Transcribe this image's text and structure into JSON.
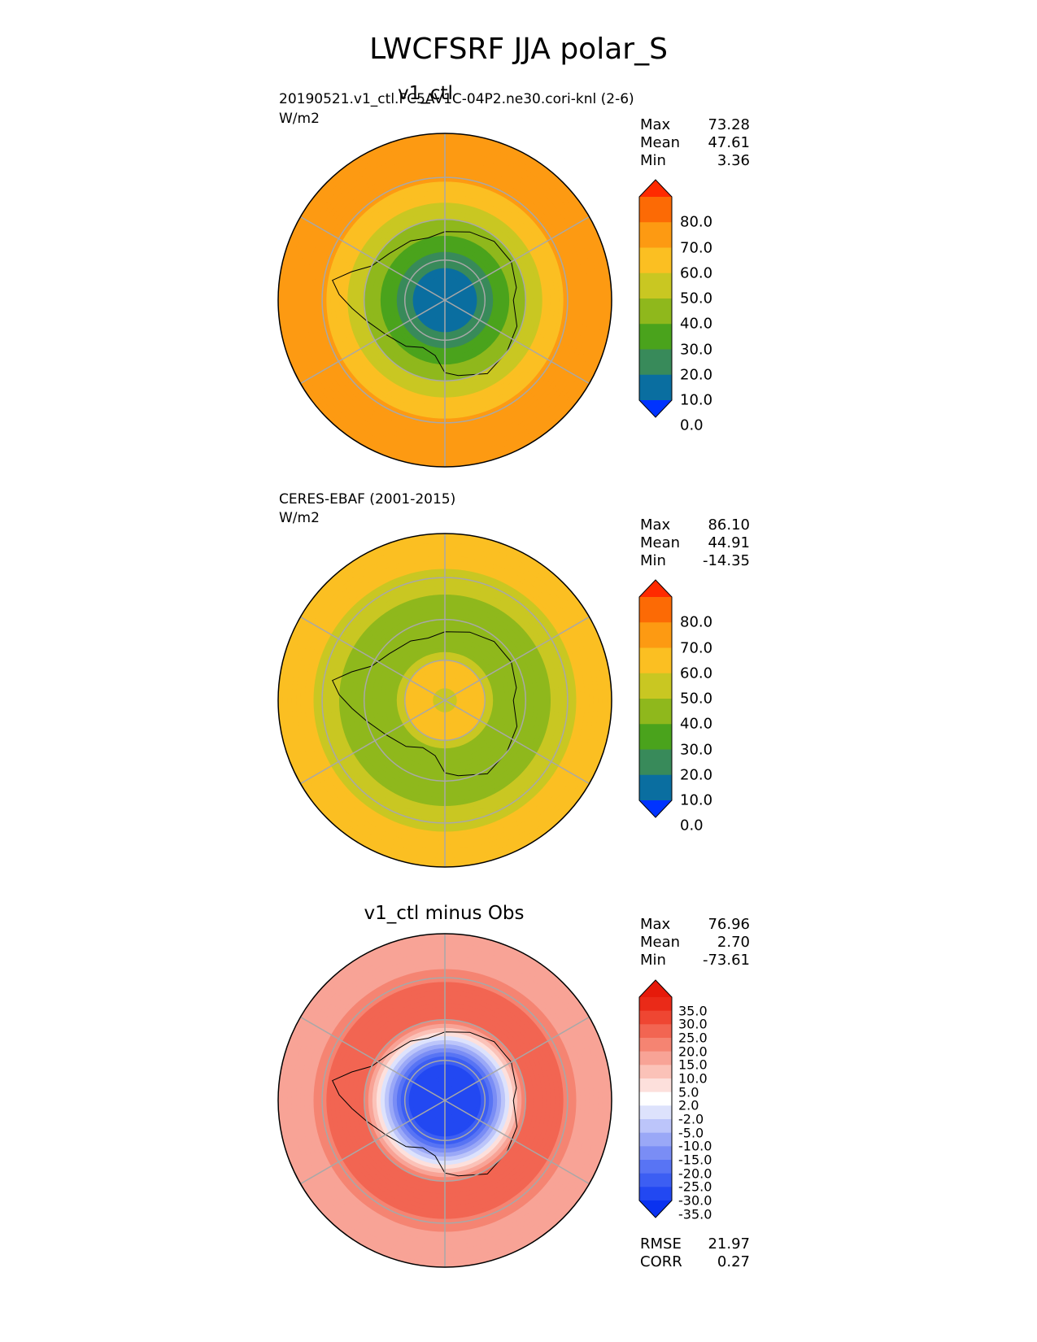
{
  "title": "LWCFSRF JJA polar_S",
  "panels": [
    {
      "title": "v1_ctl",
      "label": "20190521.v1_ctl.FC5AV1C-04P2.ne30.cori-knl (2-6)",
      "units": "W/m2",
      "stats": {
        "max_label": "Max",
        "max": "73.28",
        "mean_label": "Mean",
        "mean": "47.61",
        "min_label": "Min",
        "min": "3.36"
      },
      "colorbar_ticks": [
        "80.0",
        "70.0",
        "60.0",
        "50.0",
        "40.0",
        "30.0",
        "20.0",
        "10.0",
        "0.0"
      ]
    },
    {
      "title": "",
      "label": "CERES-EBAF (2001-2015)",
      "units": "W/m2",
      "stats": {
        "max_label": "Max",
        "max": "86.10",
        "mean_label": "Mean",
        "mean": "44.91",
        "min_label": "Min",
        "min": "-14.35"
      },
      "colorbar_ticks": [
        "80.0",
        "70.0",
        "60.0",
        "50.0",
        "40.0",
        "30.0",
        "20.0",
        "10.0",
        "0.0"
      ]
    },
    {
      "title": "v1_ctl minus Obs",
      "label": "",
      "units": "",
      "stats": {
        "max_label": "Max",
        "max": "76.96",
        "mean_label": "Mean",
        "mean": "2.70",
        "min_label": "Min",
        "min": "-73.61"
      },
      "colorbar_ticks": [
        "35.0",
        "30.0",
        "25.0",
        "20.0",
        "15.0",
        "10.0",
        "5.0",
        "2.0",
        "-2.0",
        "-5.0",
        "-10.0",
        "-15.0",
        "-20.0",
        "-25.0",
        "-30.0",
        "-35.0"
      ],
      "metrics": {
        "rmse_label": "RMSE",
        "rmse": "21.97",
        "corr_label": "CORR",
        "corr": "0.27"
      }
    }
  ],
  "colormaps": {
    "field": [
      "#0033ff",
      "#0a6ea0",
      "#388a5a",
      "#4aa31c",
      "#8fb81c",
      "#c9c722",
      "#fbbf22",
      "#fd9a12",
      "#fc6a05",
      "#ff2a00"
    ],
    "diff": [
      "#0a32f0",
      "#2248f2",
      "#3c5ef3",
      "#5874f4",
      "#7a8df5",
      "#9aa8f7",
      "#bcc5fa",
      "#dde2fc",
      "#ffffff",
      "#fde0dc",
      "#fbc2b8",
      "#f8a396",
      "#f58472",
      "#f26552",
      "#ef4632",
      "#ea2a18",
      "#e61a0a"
    ]
  },
  "chart_data": [
    {
      "type": "heatmap",
      "projection": "south polar stereographic",
      "title": "v1_ctl",
      "units": "W/m2",
      "levels": [
        0,
        10,
        20,
        30,
        40,
        50,
        60,
        70,
        80
      ],
      "extend": "both",
      "statistics": {
        "max": 73.28,
        "mean": 47.61,
        "min": 3.36
      },
      "approx_zonal_pattern": {
        "colatitude_deg": [
          0,
          8,
          12,
          16,
          20,
          26,
          32,
          40
        ],
        "value": [
          5,
          10,
          20,
          30,
          40,
          55,
          65,
          65
        ]
      }
    },
    {
      "type": "heatmap",
      "projection": "south polar stereographic",
      "title": "CERES-EBAF (2001-2015)",
      "units": "W/m2",
      "levels": [
        0,
        10,
        20,
        30,
        40,
        50,
        60,
        70,
        80
      ],
      "extend": "both",
      "statistics": {
        "max": 86.1,
        "mean": 44.91,
        "min": -14.35
      },
      "approx_zonal_pattern": {
        "colatitude_deg": [
          0,
          8,
          12,
          16,
          20,
          26,
          32,
          40
        ],
        "value": [
          45,
          60,
          40,
          30,
          35,
          40,
          50,
          55
        ]
      }
    },
    {
      "type": "heatmap",
      "projection": "south polar stereographic",
      "title": "v1_ctl minus Obs",
      "units": "W/m2",
      "levels": [
        -35,
        -30,
        -25,
        -20,
        -15,
        -10,
        -5,
        -2,
        2,
        5,
        10,
        15,
        20,
        25,
        30,
        35
      ],
      "extend": "both",
      "statistics": {
        "max": 76.96,
        "mean": 2.7,
        "min": -73.61,
        "rmse": 21.97,
        "corr": 0.27
      },
      "approx_zonal_pattern": {
        "colatitude_deg": [
          0,
          8,
          12,
          16,
          20,
          26,
          32,
          40
        ],
        "value": [
          -30,
          -35,
          -20,
          0,
          20,
          25,
          15,
          10
        ]
      }
    }
  ]
}
